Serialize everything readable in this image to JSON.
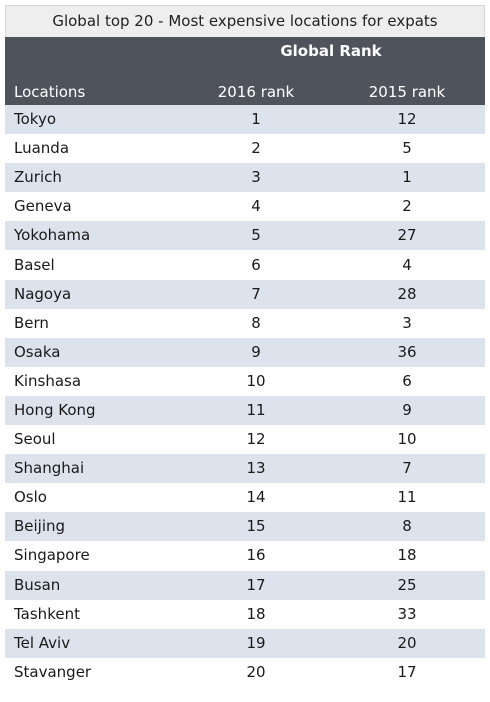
{
  "caption": "Global top 20 - Most expensive locations for expats",
  "header": {
    "group_label": "Global Rank",
    "col_location": "Locations",
    "col_2016": "2016 rank",
    "col_2015": "2015 rank"
  },
  "colors": {
    "header_bg": "#4f535c",
    "row_alt": "#dce3ed",
    "caption_bg": "#eeeeee"
  },
  "chart_data": {
    "type": "table",
    "title": "Global top 20 - Most expensive locations for expats",
    "columns": [
      "Locations",
      "2016 rank",
      "2015 rank"
    ],
    "rows": [
      {
        "location": "Tokyo",
        "rank_2016": "1",
        "rank_2015": "12"
      },
      {
        "location": "Luanda",
        "rank_2016": "2",
        "rank_2015": "5"
      },
      {
        "location": "Zurich",
        "rank_2016": "3",
        "rank_2015": "1"
      },
      {
        "location": "Geneva",
        "rank_2016": "4",
        "rank_2015": "2"
      },
      {
        "location": "Yokohama",
        "rank_2016": "5",
        "rank_2015": "27"
      },
      {
        "location": "Basel",
        "rank_2016": "6",
        "rank_2015": "4"
      },
      {
        "location": "Nagoya",
        "rank_2016": "7",
        "rank_2015": "28"
      },
      {
        "location": "Bern",
        "rank_2016": "8",
        "rank_2015": "3"
      },
      {
        "location": "Osaka",
        "rank_2016": "9",
        "rank_2015": "36"
      },
      {
        "location": "Kinshasa",
        "rank_2016": "10",
        "rank_2015": "6"
      },
      {
        "location": "Hong Kong",
        "rank_2016": "11",
        "rank_2015": "9"
      },
      {
        "location": "Seoul",
        "rank_2016": "12",
        "rank_2015": "10"
      },
      {
        "location": "Shanghai",
        "rank_2016": "13",
        "rank_2015": "7"
      },
      {
        "location": "Oslo",
        "rank_2016": "14",
        "rank_2015": "11"
      },
      {
        "location": "Beijing",
        "rank_2016": "15",
        "rank_2015": "8"
      },
      {
        "location": "Singapore",
        "rank_2016": "16",
        "rank_2015": "18"
      },
      {
        "location": "Busan",
        "rank_2016": "17",
        "rank_2015": "25"
      },
      {
        "location": "Tashkent",
        "rank_2016": "18",
        "rank_2015": "33"
      },
      {
        "location": "Tel Aviv",
        "rank_2016": "19",
        "rank_2015": "20"
      },
      {
        "location": "Stavanger",
        "rank_2016": "20",
        "rank_2015": "17"
      }
    ]
  }
}
